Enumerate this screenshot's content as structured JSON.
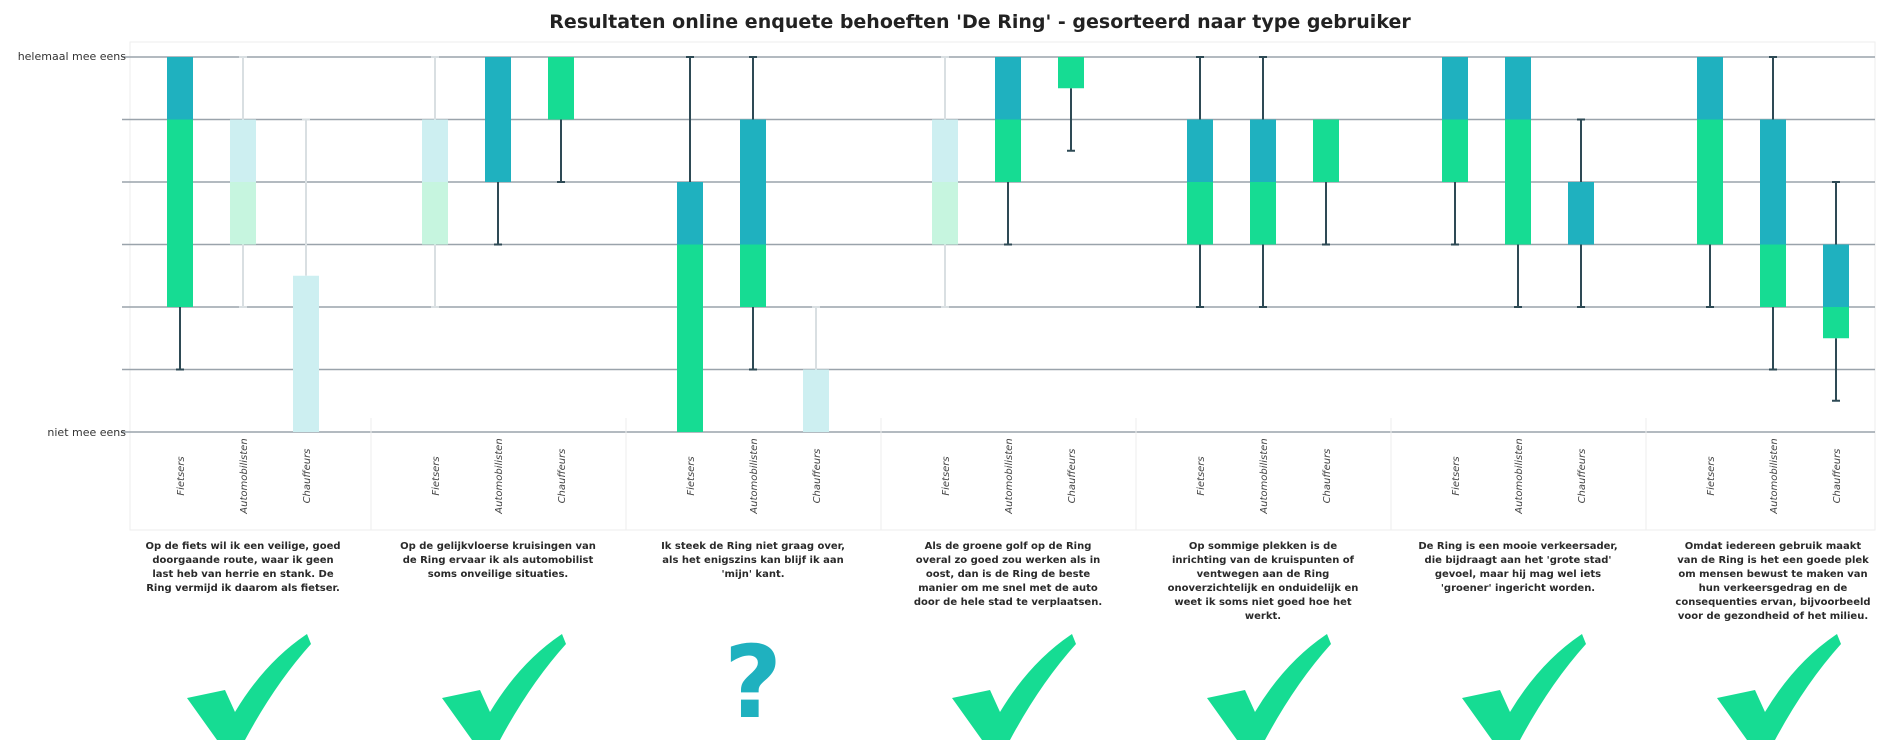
{
  "chart_data": {
    "type": "boxplot",
    "title": "Resultaten online enquete behoeften 'De Ring' - gesorteerd naar type gebruiker",
    "y_top_label": "helemaal mee eens",
    "y_bottom_label": "niet mee eens",
    "ylim": [
      1,
      7
    ],
    "grid": true,
    "colors": {
      "upper": "#1fb1bf",
      "lower": "#16dc93",
      "upper_faded": "#cdeff1",
      "lower_faded": "#c6f5df",
      "whisker": "#2e4a55",
      "whisker_faded": "#d9dfe2",
      "grid": "#9aa3ab"
    },
    "groups": [
      {
        "statement": "Op de fiets wil ik een veilige, goed doorgaande route, waar ik geen last heb van herrie en stank. De Ring vermijd ik daarom als fietser.",
        "mark": "check",
        "boxes": [
          {
            "label": "Fietsers",
            "faded": false,
            "min": 2,
            "q1": 3,
            "median": 6,
            "q3": 7,
            "max": 7
          },
          {
            "label": "Automobilisten",
            "faded": true,
            "min": 3,
            "q1": 4,
            "median": 5,
            "q3": 6,
            "max": 7
          },
          {
            "label": "Chauffeurs",
            "faded": true,
            "min": 1,
            "q1": 1,
            "median": 1,
            "q3": 3.5,
            "max": 6
          }
        ]
      },
      {
        "statement": "Op de gelijkvloerse kruisingen van de Ring ervaar ik als automobilist soms onveilige situaties.",
        "mark": "check",
        "boxes": [
          {
            "label": "Fietsers",
            "faded": true,
            "min": 3,
            "q1": 4,
            "median": 5,
            "q3": 6,
            "max": 7
          },
          {
            "label": "Automobilisten",
            "faded": false,
            "min": 4,
            "q1": 5,
            "median": 5,
            "q3": 7,
            "max": 7
          },
          {
            "label": "Chauffeurs",
            "faded": false,
            "min": 5,
            "q1": 6,
            "median": 7,
            "q3": 7,
            "max": 7
          }
        ]
      },
      {
        "statement": "Ik steek de Ring niet graag over, als het enigszins kan blijf ik aan 'mijn' kant.",
        "mark": "question",
        "boxes": [
          {
            "label": "Fietsers",
            "faded": false,
            "min": 1,
            "q1": 1,
            "median": 4,
            "q3": 5,
            "max": 7
          },
          {
            "label": "Automobilisten",
            "faded": false,
            "min": 2,
            "q1": 3,
            "median": 4,
            "q3": 6,
            "max": 7
          },
          {
            "label": "Chauffeurs",
            "faded": true,
            "min": 1,
            "q1": 1,
            "median": 1,
            "q3": 2,
            "max": 3
          }
        ]
      },
      {
        "statement": "Als de groene golf op de Ring overal zo goed zou werken als in oost, dan is de Ring de beste manier om me snel met de auto door de hele stad te verplaatsen.",
        "mark": "check",
        "boxes": [
          {
            "label": "Fietsers",
            "faded": true,
            "min": 3,
            "q1": 4,
            "median": 5,
            "q3": 6,
            "max": 7
          },
          {
            "label": "Automobilisten",
            "faded": false,
            "min": 4,
            "q1": 5,
            "median": 6,
            "q3": 7,
            "max": 7
          },
          {
            "label": "Chauffeurs",
            "faded": false,
            "min": 5.5,
            "q1": 6.5,
            "median": 7,
            "q3": 7,
            "max": 7
          }
        ]
      },
      {
        "statement": "Op sommige plekken is de inrichting van de kruispunten of ventwegen aan de Ring onoverzichtelijk en onduidelijk en weet ik soms niet goed hoe het werkt.",
        "mark": "check",
        "boxes": [
          {
            "label": "Fietsers",
            "faded": false,
            "min": 3,
            "q1": 4,
            "median": 5,
            "q3": 6,
            "max": 7
          },
          {
            "label": "Automobilisten",
            "faded": false,
            "min": 3,
            "q1": 4,
            "median": 5,
            "q3": 6,
            "max": 7
          },
          {
            "label": "Chauffeurs",
            "faded": false,
            "min": 4,
            "q1": 5,
            "median": 6,
            "q3": 6,
            "max": 6
          }
        ]
      },
      {
        "statement": "De Ring is een mooie verkeersader, die bijdraagt aan het 'grote stad' gevoel, maar hij mag wel iets 'groener' ingericht worden.",
        "mark": "check",
        "boxes": [
          {
            "label": "Fietsers",
            "faded": false,
            "min": 4,
            "q1": 5,
            "median": 6,
            "q3": 7,
            "max": 7
          },
          {
            "label": "Automobilisten",
            "faded": false,
            "min": 3,
            "q1": 4,
            "median": 6,
            "q3": 7,
            "max": 7
          },
          {
            "label": "Chauffeurs",
            "faded": false,
            "min": 3,
            "q1": 4,
            "median": 4,
            "q3": 5,
            "max": 6
          }
        ]
      },
      {
        "statement": "Omdat iedereen gebruik maakt van de Ring is het een goede plek om mensen bewust te maken van hun verkeersgedrag en de consequenties ervan, bijvoorbeeld voor de gezondheid of het milieu.",
        "mark": "check",
        "boxes": [
          {
            "label": "Fietsers",
            "faded": false,
            "min": 3,
            "q1": 4,
            "median": 6,
            "q3": 7,
            "max": 7
          },
          {
            "label": "Automobilisten",
            "faded": false,
            "min": 2,
            "q1": 3,
            "median": 4,
            "q3": 6,
            "max": 7
          },
          {
            "label": "Chauffeurs",
            "faded": false,
            "min": 1.5,
            "q1": 2.5,
            "median": 3,
            "q3": 4,
            "max": 5
          }
        ]
      }
    ]
  },
  "icons": {
    "check": "check-icon",
    "question": "?"
  }
}
